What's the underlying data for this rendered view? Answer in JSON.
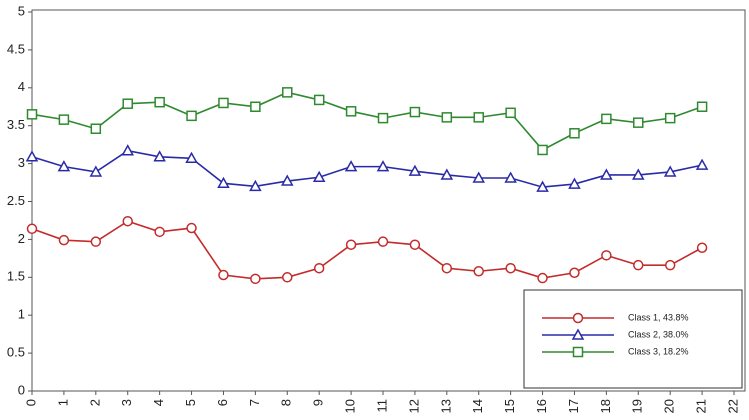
{
  "chart_data": {
    "type": "line",
    "x": [
      0,
      1,
      2,
      3,
      4,
      5,
      6,
      7,
      8,
      9,
      10,
      11,
      12,
      13,
      14,
      15,
      16,
      17,
      18,
      19,
      20,
      21
    ],
    "series": [
      {
        "name": "Class 1, 43.8%",
        "color": "#c42b2b",
        "marker": "circle",
        "values": [
          2.14,
          1.99,
          1.97,
          2.24,
          2.1,
          2.15,
          1.53,
          1.48,
          1.5,
          1.62,
          1.93,
          1.97,
          1.93,
          1.62,
          1.58,
          1.62,
          1.49,
          1.56,
          1.79,
          1.66,
          1.66,
          1.89
        ]
      },
      {
        "name": "Class 2, 38.0%",
        "color": "#2a2aa8",
        "marker": "triangle",
        "values": [
          3.09,
          2.96,
          2.89,
          3.17,
          3.09,
          3.07,
          2.74,
          2.7,
          2.77,
          2.82,
          2.96,
          2.96,
          2.9,
          2.85,
          2.81,
          2.81,
          2.69,
          2.73,
          2.85,
          2.85,
          2.89,
          2.98
        ]
      },
      {
        "name": "Class 3, 18.2%",
        "color": "#2f8a2f",
        "marker": "square",
        "values": [
          3.65,
          3.58,
          3.46,
          3.79,
          3.81,
          3.63,
          3.8,
          3.75,
          3.94,
          3.84,
          3.69,
          3.6,
          3.68,
          3.61,
          3.61,
          3.67,
          3.18,
          3.4,
          3.59,
          3.54,
          3.6,
          3.75
        ]
      }
    ],
    "xlim": [
      0,
      22
    ],
    "xticks": [
      0,
      1,
      2,
      3,
      4,
      5,
      6,
      7,
      8,
      9,
      10,
      11,
      12,
      13,
      14,
      15,
      16,
      17,
      18,
      19,
      20,
      21,
      22
    ],
    "ylim": [
      0,
      5
    ],
    "yticks": [
      0,
      0.5,
      1,
      1.5,
      2,
      2.5,
      3,
      3.5,
      4,
      4.5,
      5
    ],
    "legend": "lower right"
  }
}
